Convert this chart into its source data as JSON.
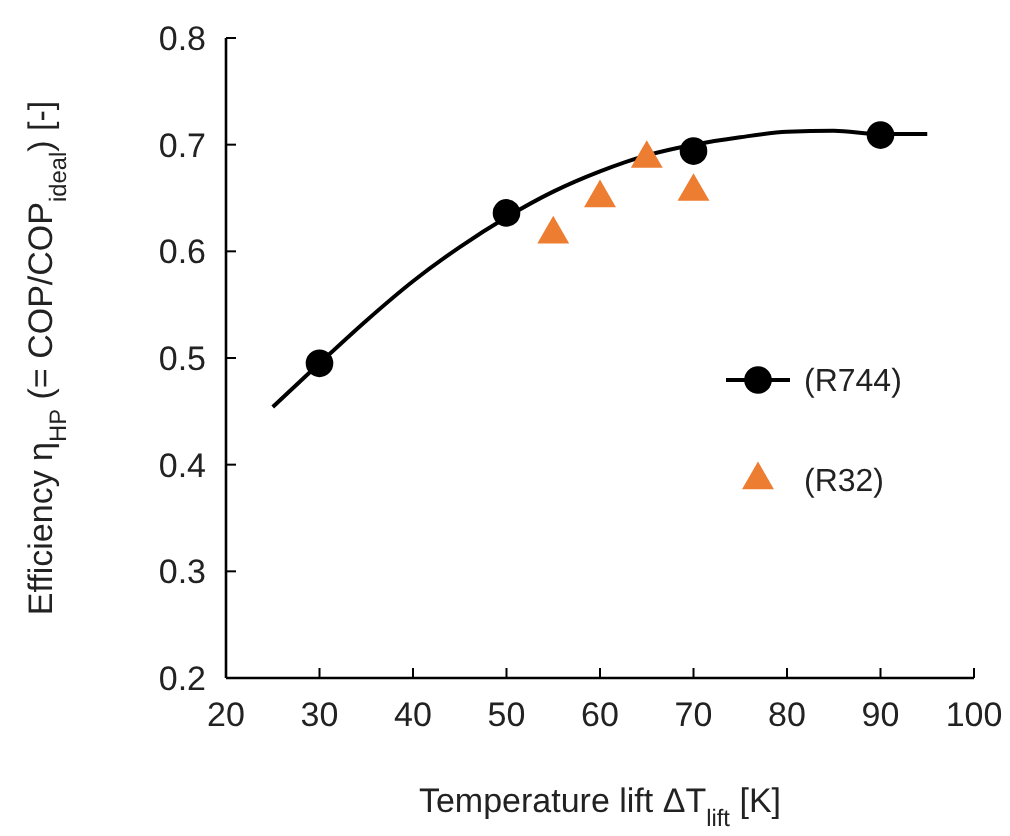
{
  "chart_data": {
    "type": "scatter",
    "xlabel": "Temperature lift ΔT$_{lift}$ [K]",
    "ylabel": "Efficiency η$_{HP}$ (= COP/COP$_{ideal}$) [-]",
    "xlim": [
      20,
      100
    ],
    "xticks": [
      20,
      30,
      40,
      50,
      60,
      70,
      80,
      90,
      100
    ],
    "ylim": [
      0.2,
      0.8
    ],
    "yticks": [
      0.2,
      0.3,
      0.4,
      0.5,
      0.6,
      0.7,
      0.8
    ],
    "grid": false,
    "legend": "right",
    "series": [
      {
        "type": "line",
        "color": "#000000",
        "marker": "none",
        "line_style": "solid",
        "x": [
          25,
          30,
          35,
          40,
          45,
          50,
          55,
          60,
          65,
          70,
          75,
          80,
          85,
          90,
          95
        ],
        "values": [
          0.454,
          0.495,
          0.535,
          0.572,
          0.604,
          0.632,
          0.656,
          0.675,
          0.69,
          0.7,
          0.707,
          0.712,
          0.713,
          0.71,
          0.71
        ]
      },
      {
        "name": "(R744)",
        "color": "#000000",
        "marker": "circle",
        "x": [
          30,
          50,
          70,
          90
        ],
        "values": [
          0.495,
          0.636,
          0.694,
          0.709
        ]
      },
      {
        "name": "(R32)",
        "color": "#ed7d31",
        "marker": "triangle",
        "x": [
          55,
          60,
          65,
          70
        ],
        "values": [
          0.616,
          0.65,
          0.687,
          0.656
        ]
      }
    ]
  }
}
